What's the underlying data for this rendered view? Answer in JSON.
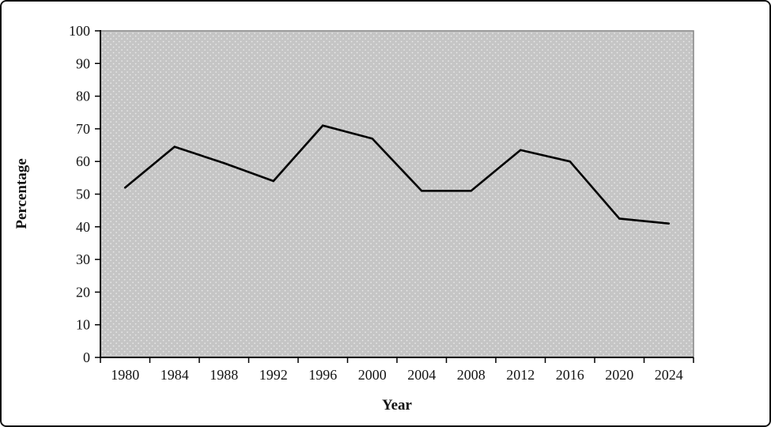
{
  "window": {
    "description": "Line chart figure"
  },
  "chart_data": {
    "type": "line",
    "title": "",
    "xlabel": "Year",
    "ylabel": "Percentage",
    "categories": [
      "1980",
      "1984",
      "1988",
      "1992",
      "1996",
      "2000",
      "2004",
      "2008",
      "2012",
      "2016",
      "2020",
      "2024"
    ],
    "series": [
      {
        "name": "Percentage",
        "values": [
          52,
          64.5,
          59.5,
          54,
          71,
          67,
          51,
          51,
          63.5,
          60,
          42.5,
          41
        ]
      }
    ],
    "y_ticks": [
      0,
      10,
      20,
      30,
      40,
      50,
      60,
      70,
      80,
      90,
      100
    ],
    "ylim": [
      0,
      100
    ],
    "grid": false,
    "legend": false,
    "colors": {
      "line": "#000000",
      "axis": "#000000",
      "plot_bg": "#c5c5c5",
      "plot_dot": "#e9e9e9",
      "plot_border": "#868686",
      "text": "#141414",
      "frame_border": "#111111",
      "page_bg": "#ffffff"
    }
  }
}
